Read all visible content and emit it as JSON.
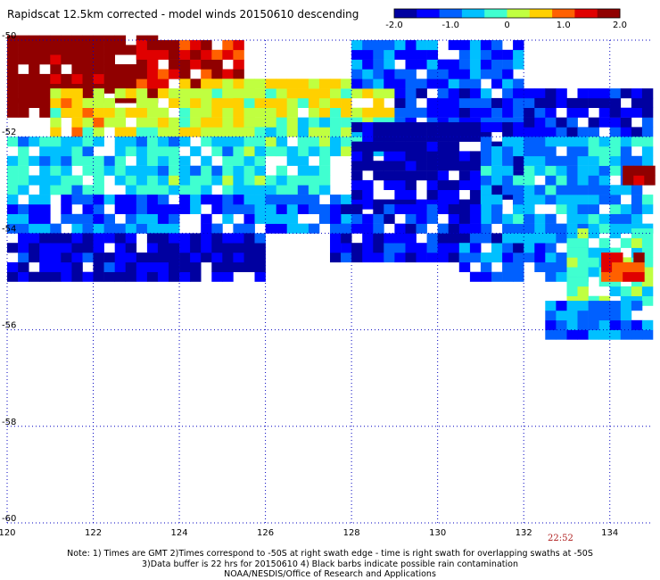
{
  "title": "Rapidscat 12.5km corrected - model winds 20150610 descending",
  "timestamp": "22:52",
  "note": {
    "line1": "Note: 1) Times are GMT 2)Times correspond to -50S at right swath edge - time is right swath for overlapping swaths at -50S",
    "line2": "3)Data buffer is 22 hrs for 20150610 4) Black barbs indicate possible rain contamination",
    "line3": "NOAA/NESDIS/Office of Research and Applications"
  },
  "colors": {
    "scale": [
      "#0000a0",
      "#0000ff",
      "#0060ff",
      "#00c0ff",
      "#40ffd0",
      "#c0ff40",
      "#ffd000",
      "#ff6000",
      "#e00000",
      "#900000"
    ]
  },
  "chart_data": {
    "type": "heatmap",
    "title": "Rapidscat 12.5km corrected - model winds 20150610 descending",
    "xlim": [
      120,
      135
    ],
    "ylim": [
      -60,
      -50
    ],
    "x_ticks": [
      120,
      122,
      124,
      126,
      128,
      130,
      132,
      134
    ],
    "y_ticks": [
      -50,
      -52,
      -54,
      -56,
      -58,
      -60
    ],
    "grid": true,
    "colorbar": {
      "range": [
        -2.0,
        2.0
      ],
      "ticks": [
        -2.0,
        -1.0,
        0,
        1.0,
        2.0
      ],
      "tick_labels": [
        "-2.0",
        "-1.0",
        "0",
        "1.0",
        "2.0"
      ],
      "placement": "top-right"
    },
    "cell_size_deg": [
      0.25,
      0.2
    ],
    "regions": [
      {
        "x": [
          120.0,
          123.5
        ],
        "y": [
          -51.3,
          -50.0
        ],
        "value": 2.0
      },
      {
        "x": [
          123.0,
          125.5
        ],
        "y": [
          -51.0,
          -50.0
        ],
        "value": 1.4
      },
      {
        "x": [
          120.0,
          121.5
        ],
        "y": [
          -51.6,
          -51.2
        ],
        "value": 2.0
      },
      {
        "x": [
          121.0,
          126.5
        ],
        "y": [
          -52.0,
          -51.0
        ],
        "value": 0.4
      },
      {
        "x": [
          124.0,
          129.5
        ],
        "y": [
          -51.6,
          -50.8
        ],
        "value": 0.3
      },
      {
        "x": [
          120.0,
          127.5
        ],
        "y": [
          -53.2,
          -52.0
        ],
        "value": -0.4
      },
      {
        "x": [
          125.5,
          129.0
        ],
        "y": [
          -52.4,
          -51.6
        ],
        "value": -0.2
      },
      {
        "x": [
          120.0,
          128.0
        ],
        "y": [
          -54.0,
          -53.2
        ],
        "value": -1.0
      },
      {
        "x": [
          120.0,
          126.0
        ],
        "y": [
          -55.0,
          -54.0
        ],
        "value": -1.6
      },
      {
        "x": [
          128.0,
          132.0
        ],
        "y": [
          -51.0,
          -50.0
        ],
        "value": -1.1
      },
      {
        "x": [
          129.0,
          132.5
        ],
        "y": [
          -51.8,
          -51.0
        ],
        "value": -1.2
      },
      {
        "x": [
          128.0,
          132.0
        ],
        "y": [
          -53.5,
          -51.8
        ],
        "value": -1.8
      },
      {
        "x": [
          132.0,
          135.0
        ],
        "y": [
          -52.0,
          -51.0
        ],
        "value": -1.5
      },
      {
        "x": [
          131.0,
          135.0
        ],
        "y": [
          -54.0,
          -52.0
        ],
        "value": -0.7
      },
      {
        "x": [
          127.5,
          131.0
        ],
        "y": [
          -54.6,
          -53.5
        ],
        "value": -1.5
      },
      {
        "x": [
          130.5,
          133.5
        ],
        "y": [
          -55.0,
          -54.0
        ],
        "value": -1.2
      },
      {
        "x": [
          133.0,
          135.0
        ],
        "y": [
          -55.5,
          -54.0
        ],
        "value": -0.2
      },
      {
        "x": [
          133.8,
          134.8
        ],
        "y": [
          -55.0,
          -54.5
        ],
        "value": 1.3
      },
      {
        "x": [
          134.3,
          135.0
        ],
        "y": [
          -53.0,
          -52.7
        ],
        "value": 2.0
      },
      {
        "x": [
          132.5,
          135.0
        ],
        "y": [
          -56.2,
          -55.5
        ],
        "value": -0.9
      }
    ]
  }
}
